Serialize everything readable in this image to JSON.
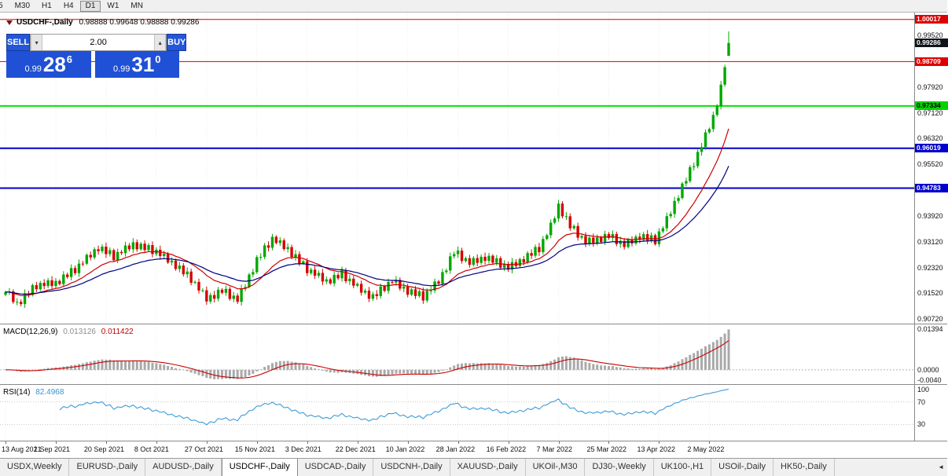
{
  "toolbar": {
    "timeframes": [
      {
        "label": "5",
        "active": false
      },
      {
        "label": "M30",
        "active": false
      },
      {
        "label": "H1",
        "active": false
      },
      {
        "label": "H4",
        "active": false
      },
      {
        "label": "D1",
        "active": true
      },
      {
        "label": "W1",
        "active": false
      },
      {
        "label": "MN",
        "active": false
      }
    ]
  },
  "chart": {
    "title_symbol": "USDCHF-,Daily",
    "title_ohlc": "0.98888 0.99648 0.98888 0.99286",
    "one_click": {
      "sell_label": "SELL",
      "buy_label": "BUY",
      "volume": "2.00",
      "volume_down_icon": "▾",
      "volume_up_icon": "▴",
      "sell_price": {
        "base": "0.99",
        "big": "28",
        "sup": "6"
      },
      "buy_price": {
        "base": "0.99",
        "big": "31",
        "sup": "0"
      }
    },
    "axis_ticks": [
      "0.99520",
      "0.97920",
      "0.97120",
      "0.96320",
      "0.95520",
      "0.93920",
      "0.93120",
      "0.92320",
      "0.91520",
      "0.90720"
    ],
    "price_boxes": [
      {
        "label": "1.00017",
        "bg": "#dd0000",
        "fg": "#ffffff",
        "price": 1.00017
      },
      {
        "label": "0.99286",
        "bg": "#10131a",
        "fg": "#ffffff",
        "price": 0.99286
      },
      {
        "label": "0.98709",
        "bg": "#dd0000",
        "fg": "#ffffff",
        "price": 0.98709
      },
      {
        "label": "0.97334",
        "bg": "#00d400",
        "fg": "#000000",
        "price": 0.97334
      },
      {
        "label": "0.96019",
        "bg": "#0000cc",
        "fg": "#ffffff",
        "price": 0.96019
      },
      {
        "label": "0.94783",
        "bg": "#0000cc",
        "fg": "#ffffff",
        "price": 0.94783
      }
    ],
    "hlines": [
      {
        "price": 1.00017,
        "color": "#dd0000",
        "width": 1
      },
      {
        "price": 0.98709,
        "color": "#dd0000",
        "width": 1
      },
      {
        "price": 0.97334,
        "color": "#00e400",
        "width": 2
      },
      {
        "price": 0.96019,
        "color": "#0000cc",
        "width": 2
      },
      {
        "price": 0.94783,
        "color": "#0000cc",
        "width": 2
      }
    ]
  },
  "macd": {
    "label": "MACD(12,26,9)",
    "hist_value": "0.013126",
    "signal_value": "0.011422",
    "ticks": [
      "0.01394",
      "0.0000",
      "-0.0040"
    ]
  },
  "rsi": {
    "label": "RSI(14)",
    "value": "82.4968",
    "ticks": [
      "100",
      "70",
      "30"
    ],
    "levels": [
      70,
      30
    ]
  },
  "dates": {
    "labels": [
      "13 Aug 2021",
      "1 Sep 2021",
      "20 Sep 2021",
      "8 Oct 2021",
      "27 Oct 2021",
      "15 Nov 2021",
      "3 Dec 2021",
      "22 Dec 2021",
      "10 Jan 2022",
      "28 Jan 2022",
      "16 Feb 2022",
      "7 Mar 2022",
      "25 Mar 2022",
      "13 Apr 2022",
      "2 May 2022"
    ],
    "bar_indices": [
      0,
      13,
      26,
      39,
      52,
      65,
      78,
      91,
      104,
      117,
      130,
      143,
      156,
      169,
      182
    ]
  },
  "tabs": {
    "items": [
      {
        "label": "USDX,Weekly",
        "active": false
      },
      {
        "label": "EURUSD-,Daily",
        "active": false
      },
      {
        "label": "AUDUSD-,Daily",
        "active": false
      },
      {
        "label": "USDCHF-,Daily",
        "active": true
      },
      {
        "label": "USDCAD-,Daily",
        "active": false
      },
      {
        "label": "USDCNH-,Daily",
        "active": false
      },
      {
        "label": "XAUUSD-,Daily",
        "active": false
      },
      {
        "label": "UKOil-,M30",
        "active": false
      },
      {
        "label": "DJ30-,Weekly",
        "active": false
      },
      {
        "label": "UK100-,H1",
        "active": false
      },
      {
        "label": "USOil-,Daily",
        "active": false
      },
      {
        "label": "HK50-,Daily",
        "active": false
      }
    ],
    "scroll_arrow": "◄"
  },
  "chart_data": {
    "type": "candlestick",
    "symbol": "USDCHF",
    "timeframe": "Daily",
    "title": "USDCHF-,Daily",
    "bars": 188,
    "last_bar": {
      "o": 0.98888,
      "h": 0.99648,
      "l": 0.98888,
      "c": 0.99286
    },
    "current_bid": 0.99286,
    "price_range": {
      "max": 1.0023,
      "min": 0.9058
    },
    "wiggle": 0.0011,
    "close_anchors": [
      [
        0,
        0.916
      ],
      [
        3,
        0.912
      ],
      [
        8,
        0.9175
      ],
      [
        13,
        0.9185
      ],
      [
        18,
        0.9225
      ],
      [
        24,
        0.9295
      ],
      [
        28,
        0.9265
      ],
      [
        33,
        0.9305
      ],
      [
        39,
        0.928
      ],
      [
        44,
        0.924
      ],
      [
        48,
        0.9195
      ],
      [
        52,
        0.9135
      ],
      [
        56,
        0.916
      ],
      [
        60,
        0.913
      ],
      [
        65,
        0.9255
      ],
      [
        69,
        0.932
      ],
      [
        73,
        0.929
      ],
      [
        78,
        0.9225
      ],
      [
        83,
        0.919
      ],
      [
        87,
        0.921
      ],
      [
        91,
        0.917
      ],
      [
        95,
        0.914
      ],
      [
        100,
        0.919
      ],
      [
        104,
        0.916
      ],
      [
        108,
        0.914
      ],
      [
        112,
        0.919
      ],
      [
        116,
        0.928
      ],
      [
        120,
        0.9245
      ],
      [
        124,
        0.9265
      ],
      [
        130,
        0.923
      ],
      [
        134,
        0.926
      ],
      [
        138,
        0.929
      ],
      [
        141,
        0.936
      ],
      [
        143,
        0.9425
      ],
      [
        146,
        0.936
      ],
      [
        150,
        0.931
      ],
      [
        156,
        0.933
      ],
      [
        160,
        0.93
      ],
      [
        164,
        0.933
      ],
      [
        168,
        0.9315
      ],
      [
        171,
        0.938
      ],
      [
        174,
        0.946
      ],
      [
        177,
        0.953
      ],
      [
        180,
        0.961
      ],
      [
        183,
        0.97
      ],
      [
        185,
        0.979
      ],
      [
        186,
        0.986
      ],
      [
        187,
        0.9929
      ]
    ],
    "indicators": {
      "macd": {
        "fast": 12,
        "slow": 26,
        "signal": 9,
        "range_max": 0.0145,
        "range_min": -0.0048
      },
      "rsi": {
        "period": 14,
        "range": [
          0,
          100
        ],
        "levels": [
          70,
          30
        ]
      },
      "ma_fast_period": 15,
      "ma_slow_period": 30,
      "ma_fast_color": "#cc0000",
      "ma_slow_color": "#000080",
      "up_color": "#00a800",
      "down_color": "#d70000",
      "hist_color": "#a9a9a9",
      "rsi_color": "#3c9cd7"
    }
  }
}
